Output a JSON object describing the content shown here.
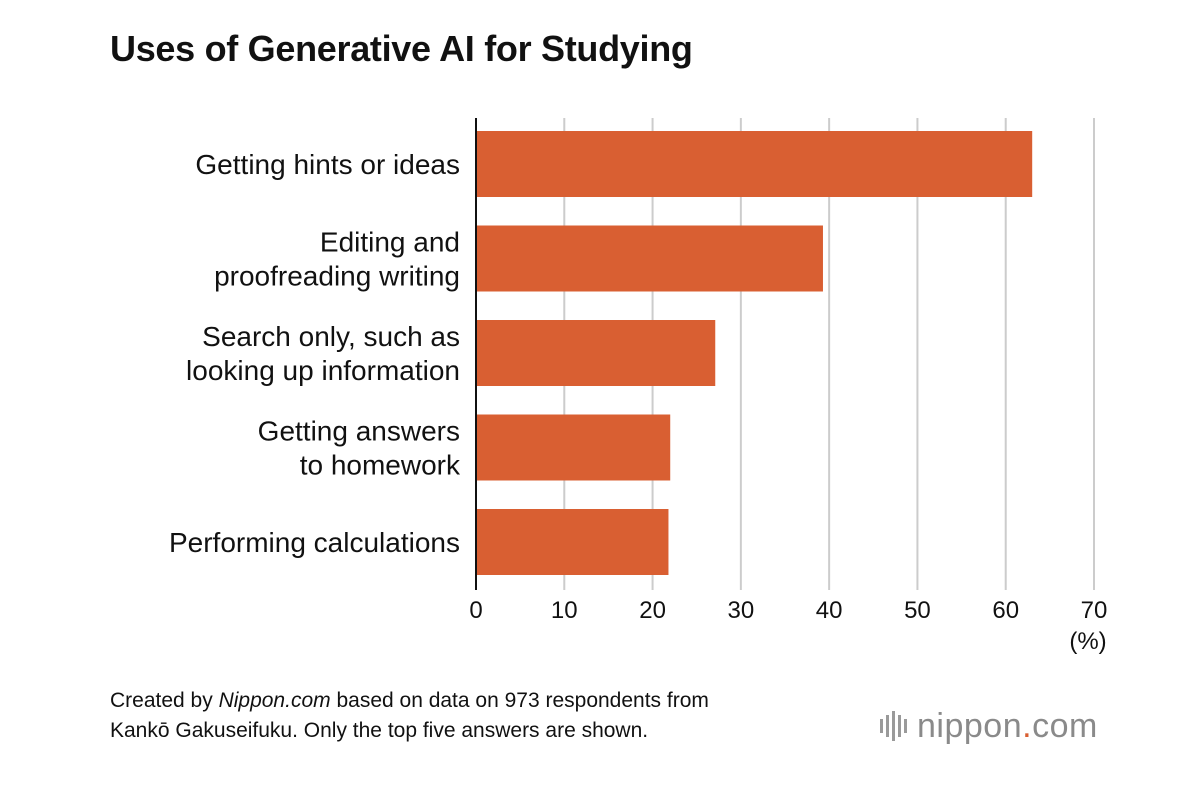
{
  "chart_data": {
    "type": "bar",
    "orientation": "horizontal",
    "title": "Uses of Generative AI for Studying",
    "categories": [
      [
        "Getting hints or ideas"
      ],
      [
        "Editing and",
        "proofreading writing"
      ],
      [
        "Search only, such as",
        "looking up information"
      ],
      [
        "Getting answers",
        "to homework"
      ],
      [
        "Performing calculations"
      ]
    ],
    "values": [
      63,
      39.3,
      27.1,
      22,
      21.8
    ],
    "xlim": [
      0,
      70
    ],
    "xticks": [
      "0",
      "10",
      "20",
      "30",
      "40",
      "50",
      "60",
      "70"
    ],
    "unit_label": "(%)",
    "grid": true,
    "bar_color": "#d95f32",
    "grid_color": "#cccccc"
  },
  "footnote": {
    "prefix": "Created by ",
    "source_name": "Nippon.com",
    "suffix": " based on data on 973 respondents from",
    "line2": "Kankō Gakuseifuku. Only the top five answers are shown."
  },
  "logo": {
    "name": "nippon",
    "dot": ".",
    "tld": "com"
  }
}
